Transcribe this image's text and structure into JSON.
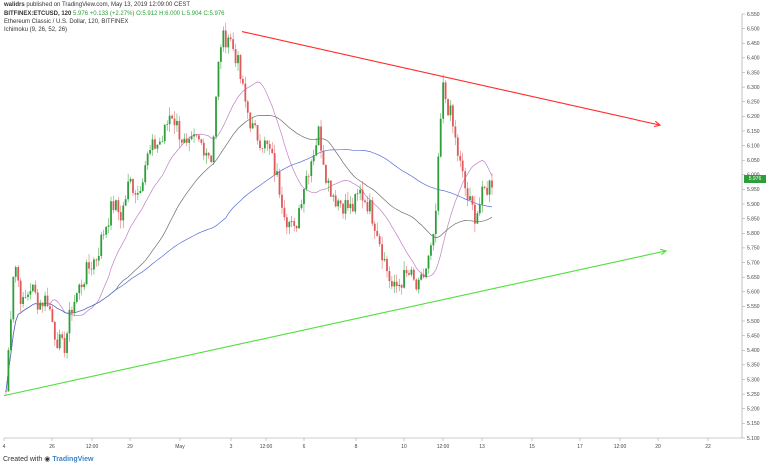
{
  "header": {
    "publish_user": "walidrs",
    "publish_text": "published on TradingView.com, May 13, 2019 12:09:00 CEST",
    "symbol": "BITFINEX:ETCUSD, 120",
    "last_value": "5.976",
    "change": "+0.133 (+2.27%)",
    "ohlc": "O:5.912 H:6.000 L:5.904 C:5.976",
    "title": "Ethereum Classic / U.S. Dollar, 120, BITFINEX",
    "indicator": "Ichimoku (9, 26, 52, 26)"
  },
  "footer": {
    "created_with": "Created with",
    "brand": "TradingView"
  },
  "price_tag": "5.976",
  "colors": {
    "up": "#2e9e3a",
    "down": "#e0585a",
    "resistance": "#ff2a2a",
    "support": "#4ee03a",
    "line_blue": "#5b6fd6",
    "line_gray": "#6e6e6e",
    "line_purple": "#c080c8"
  },
  "chart_data": {
    "type": "candlestick",
    "y_ticks": [
      "6.550",
      "6.500",
      "6.450",
      "6.400",
      "6.350",
      "6.300",
      "6.250",
      "6.200",
      "6.150",
      "6.100",
      "6.050",
      "6.000",
      "5.950",
      "5.900",
      "5.850",
      "5.800",
      "5.750",
      "5.700",
      "5.650",
      "5.600",
      "5.550",
      "5.500",
      "5.450",
      "5.400",
      "5.350",
      "5.300",
      "5.250",
      "5.200",
      "5.150",
      "5.100"
    ],
    "x_ticks": [
      "4",
      "26",
      "12:00",
      "29",
      "May",
      "3",
      "12:00",
      "6",
      "8",
      "10",
      "12:00",
      "13",
      "15",
      "17",
      "12:00",
      "20",
      "22"
    ],
    "ylim": [
      5.1,
      6.55
    ],
    "close_path": [
      5.26,
      5.72,
      5.55,
      5.62,
      5.56,
      5.58,
      5.45,
      5.4,
      5.55,
      5.62,
      5.68,
      5.72,
      5.82,
      5.9,
      5.86,
      5.98,
      5.94,
      6.05,
      6.1,
      6.12,
      6.22,
      6.15,
      6.08,
      6.12,
      6.1,
      6.06,
      6.45,
      6.48,
      6.4,
      6.25,
      6.15,
      6.12,
      6.08,
      5.98,
      5.86,
      5.8,
      5.95,
      6.05,
      6.15,
      5.98,
      5.92,
      5.9,
      5.88,
      5.94,
      5.9,
      5.82,
      5.7,
      5.6,
      5.64,
      5.66,
      5.6,
      5.68,
      5.78,
      6.3,
      6.2,
      6.05,
      5.92,
      5.86,
      5.94,
      5.98
    ],
    "resistance_line": {
      "from": [
        0.2,
        6.49
      ],
      "to": [
        0.95,
        6.17
      ]
    },
    "support_line": {
      "from": [
        0.0,
        5.245
      ],
      "to": [
        0.95,
        5.74
      ]
    }
  }
}
